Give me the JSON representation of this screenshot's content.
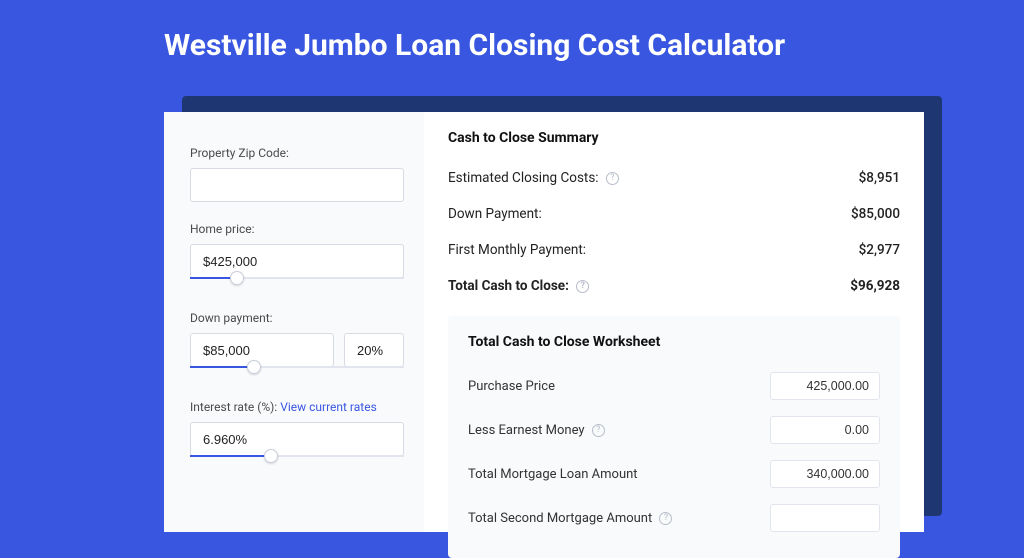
{
  "colors": {
    "page_bg": "#3856e0",
    "shadow_bg": "#1e3773",
    "card_bg": "#ffffff",
    "left_bg": "#f9fafc",
    "accent": "#3856e0",
    "border": "#d8dbe3",
    "text": "#222222",
    "muted": "#4a4a4a"
  },
  "title": "Westville Jumbo Loan Closing Cost Calculator",
  "form": {
    "zip": {
      "label": "Property Zip Code:",
      "value": ""
    },
    "home_price": {
      "label": "Home price:",
      "value": "$425,000",
      "slider_pct": 22
    },
    "down_payment": {
      "label": "Down payment:",
      "value": "$85,000",
      "pct_value": "20%",
      "slider_pct": 30
    },
    "interest": {
      "label": "Interest rate (%):",
      "link": "View current rates",
      "value": "6.960%",
      "slider_pct": 38
    }
  },
  "summary": {
    "title": "Cash to Close Summary",
    "rows": [
      {
        "label": "Estimated Closing Costs:",
        "value": "$8,951",
        "help": true
      },
      {
        "label": "Down Payment:",
        "value": "$85,000",
        "help": false
      },
      {
        "label": "First Monthly Payment:",
        "value": "$2,977",
        "help": false
      }
    ],
    "total": {
      "label": "Total Cash to Close:",
      "value": "$96,928",
      "help": true
    }
  },
  "worksheet": {
    "title": "Total Cash to Close Worksheet",
    "rows": [
      {
        "label": "Purchase Price",
        "value": "425,000.00",
        "help": false
      },
      {
        "label": "Less Earnest Money",
        "value": "0.00",
        "help": true
      },
      {
        "label": "Total Mortgage Loan Amount",
        "value": "340,000.00",
        "help": false
      },
      {
        "label": "Total Second Mortgage Amount",
        "value": "",
        "help": true
      }
    ]
  }
}
